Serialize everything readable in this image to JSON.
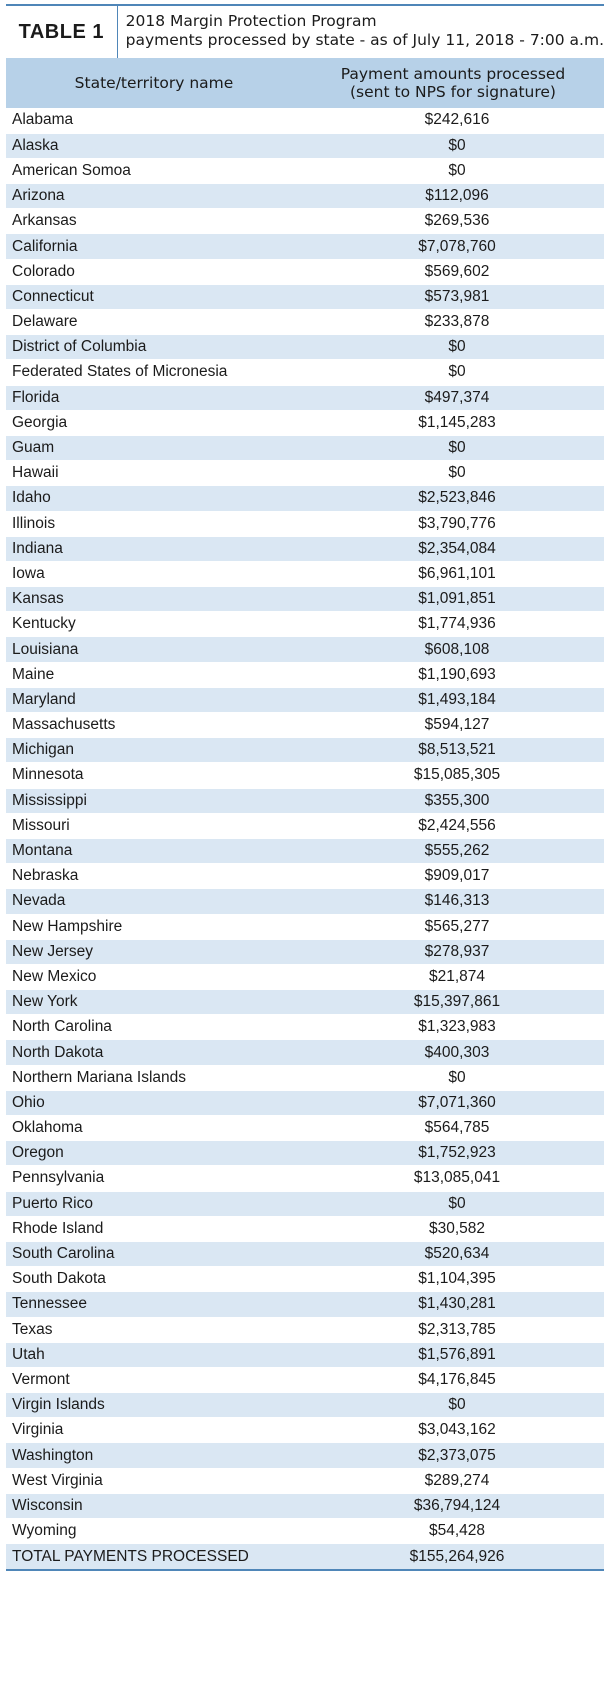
{
  "header": {
    "label": "TABLE 1",
    "title_line1": "2018 Margin Protection Program",
    "title_line2": "payments processed by state - as of July 11, 2018 - 7:00 a.m."
  },
  "columns": {
    "name_header": "State/territory name",
    "amount_header_line1": "Payment amounts processed",
    "amount_header_line2": "(sent to NPS for signature)"
  },
  "rows": [
    {
      "name": "Alabama",
      "amount": "$242,616"
    },
    {
      "name": "Alaska",
      "amount": "$0"
    },
    {
      "name": "American Somoa",
      "amount": "$0"
    },
    {
      "name": "Arizona",
      "amount": "$112,096"
    },
    {
      "name": "Arkansas",
      "amount": "$269,536"
    },
    {
      "name": "California",
      "amount": "$7,078,760"
    },
    {
      "name": "Colorado",
      "amount": "$569,602"
    },
    {
      "name": "Connecticut",
      "amount": "$573,981"
    },
    {
      "name": "Delaware",
      "amount": "$233,878"
    },
    {
      "name": "District of Columbia",
      "amount": "$0"
    },
    {
      "name": "Federated States of Micronesia",
      "amount": "$0"
    },
    {
      "name": "Florida",
      "amount": "$497,374"
    },
    {
      "name": "Georgia",
      "amount": "$1,145,283"
    },
    {
      "name": "Guam",
      "amount": "$0"
    },
    {
      "name": "Hawaii",
      "amount": "$0"
    },
    {
      "name": "Idaho",
      "amount": "$2,523,846"
    },
    {
      "name": "Illinois",
      "amount": "$3,790,776"
    },
    {
      "name": "Indiana",
      "amount": "$2,354,084"
    },
    {
      "name": "Iowa",
      "amount": "$6,961,101"
    },
    {
      "name": "Kansas",
      "amount": "$1,091,851"
    },
    {
      "name": "Kentucky",
      "amount": "$1,774,936"
    },
    {
      "name": "Louisiana",
      "amount": "$608,108"
    },
    {
      "name": "Maine",
      "amount": "$1,190,693"
    },
    {
      "name": "Maryland",
      "amount": "$1,493,184"
    },
    {
      "name": "Massachusetts",
      "amount": "$594,127"
    },
    {
      "name": "Michigan",
      "amount": "$8,513,521"
    },
    {
      "name": "Minnesota",
      "amount": "$15,085,305"
    },
    {
      "name": "Mississippi",
      "amount": "$355,300"
    },
    {
      "name": "Missouri",
      "amount": "$2,424,556"
    },
    {
      "name": "Montana",
      "amount": "$555,262"
    },
    {
      "name": "Nebraska",
      "amount": "$909,017"
    },
    {
      "name": "Nevada",
      "amount": "$146,313"
    },
    {
      "name": "New Hampshire",
      "amount": "$565,277"
    },
    {
      "name": "New Jersey",
      "amount": "$278,937"
    },
    {
      "name": "New Mexico",
      "amount": "$21,874"
    },
    {
      "name": "New York",
      "amount": "$15,397,861"
    },
    {
      "name": "North Carolina",
      "amount": "$1,323,983"
    },
    {
      "name": "North Dakota",
      "amount": "$400,303"
    },
    {
      "name": "Northern Mariana Islands",
      "amount": "$0"
    },
    {
      "name": "Ohio",
      "amount": "$7,071,360"
    },
    {
      "name": "Oklahoma",
      "amount": "$564,785"
    },
    {
      "name": "Oregon",
      "amount": "$1,752,923"
    },
    {
      "name": "Pennsylvania",
      "amount": "$13,085,041"
    },
    {
      "name": "Puerto Rico",
      "amount": "$0"
    },
    {
      "name": "Rhode Island",
      "amount": "$30,582"
    },
    {
      "name": "South Carolina",
      "amount": "$520,634"
    },
    {
      "name": "South Dakota",
      "amount": "$1,104,395"
    },
    {
      "name": "Tennessee",
      "amount": "$1,430,281"
    },
    {
      "name": "Texas",
      "amount": "$2,313,785"
    },
    {
      "name": "Utah",
      "amount": "$1,576,891"
    },
    {
      "name": "Vermont",
      "amount": "$4,176,845"
    },
    {
      "name": "Virgin Islands",
      "amount": "$0"
    },
    {
      "name": "Virginia",
      "amount": "$3,043,162"
    },
    {
      "name": "Washington",
      "amount": "$2,373,075"
    },
    {
      "name": "West Virginia",
      "amount": "$289,274"
    },
    {
      "name": "Wisconsin",
      "amount": "$36,794,124"
    },
    {
      "name": "Wyoming",
      "amount": "$54,428"
    }
  ],
  "total": {
    "name": "TOTAL PAYMENTS PROCESSED",
    "amount": "$155,264,926"
  },
  "colors": {
    "header_bg": "#b7d1e8",
    "stripe_bg": "#dae7f3",
    "rule": "#4f86b8"
  }
}
